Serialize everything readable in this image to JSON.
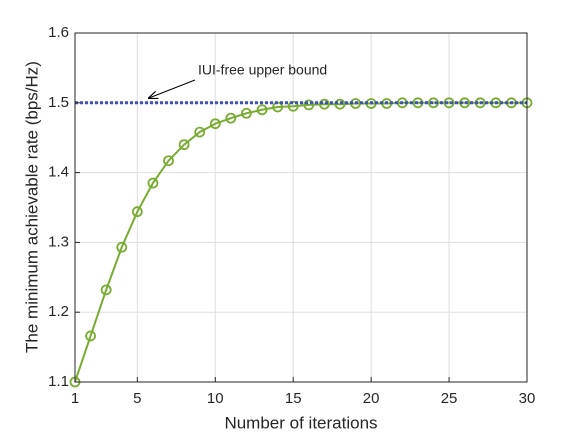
{
  "chart_data": {
    "type": "line",
    "x": [
      1,
      2,
      3,
      4,
      5,
      6,
      7,
      8,
      9,
      10,
      11,
      12,
      13,
      14,
      15,
      16,
      17,
      18,
      19,
      20,
      21,
      22,
      23,
      24,
      25,
      26,
      27,
      28,
      29,
      30
    ],
    "series": [
      {
        "color": "#77ac30",
        "marker": "circle",
        "values": [
          1.1,
          1.166,
          1.232,
          1.293,
          1.344,
          1.385,
          1.417,
          1.44,
          1.458,
          1.47,
          1.478,
          1.485,
          1.49,
          1.494,
          1.495,
          1.497,
          1.498,
          1.498,
          1.499,
          1.499,
          1.499,
          1.5,
          1.5,
          1.5,
          1.5,
          1.5,
          1.5,
          1.5,
          1.5,
          1.5
        ]
      },
      {
        "color": "#3f51b5",
        "style": "dotted",
        "x": [
          1,
          30
        ],
        "values": [
          1.5,
          1.5
        ]
      }
    ],
    "annotation": "IUI-free upper bound",
    "xlabel": "Number of iterations",
    "ylabel": "The minimum achievable rate (bps/Hz)",
    "xlim": [
      1,
      30
    ],
    "xticks": [
      1,
      5,
      10,
      15,
      20,
      25,
      30
    ],
    "ylim": [
      1.1,
      1.6
    ],
    "yticks": [
      1.1,
      1.2,
      1.3,
      1.4,
      1.5,
      1.6
    ],
    "grid": true
  }
}
